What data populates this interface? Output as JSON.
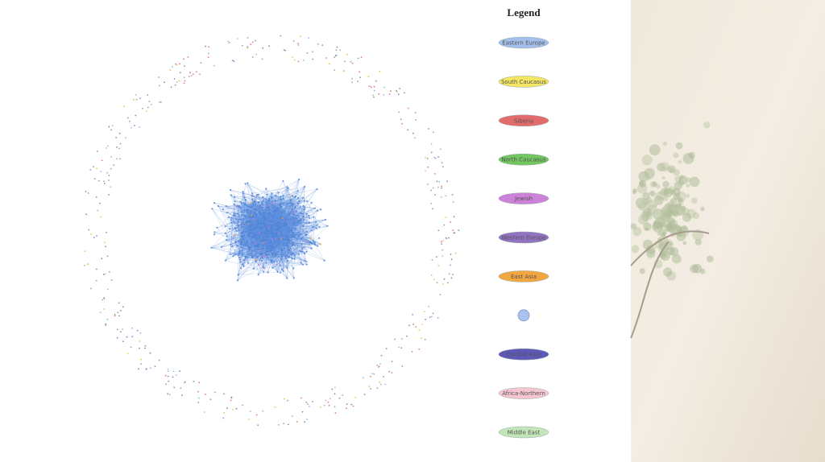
{
  "legend": {
    "title": "Legend",
    "items": [
      {
        "label": "Eastern Europe",
        "color": "#a3bfec"
      },
      {
        "label": "South Caucasus",
        "color": "#f4e563"
      },
      {
        "label": "Siberia",
        "color": "#e26b6b"
      },
      {
        "label": "North Caucasus",
        "color": "#72c760"
      },
      {
        "label": "Jewish",
        "color": "#cb82d8"
      },
      {
        "label": "Western Europe",
        "color": "#9272c2"
      },
      {
        "label": "East Asia",
        "color": "#f1a640"
      },
      {
        "color": "#a9c3ec"
      },
      {
        "label": "Central Asia",
        "color": "#5e58b8"
      },
      {
        "label": "Africa-Northern",
        "color": "#f6c6d2"
      },
      {
        "label": "Middle East",
        "color": "#c3e5b8"
      }
    ]
  }
}
